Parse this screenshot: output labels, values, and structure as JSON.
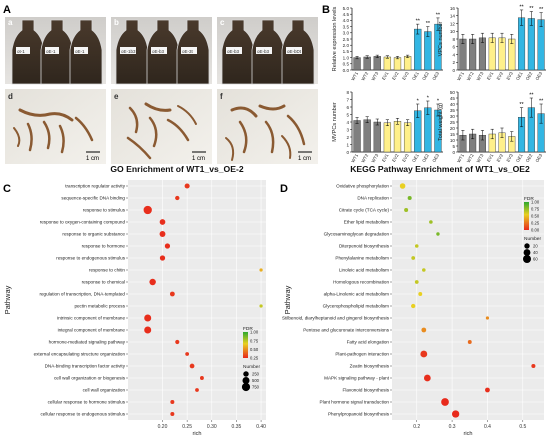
{
  "panel_letters": {
    "A": "A",
    "B": "B",
    "C": "C",
    "D": "D"
  },
  "photos": {
    "a": {
      "letter": "a",
      "labels": [
        "ot-1",
        "oE-1",
        "oE-1"
      ]
    },
    "b": {
      "letter": "b",
      "labels": [
        "oE-1b3",
        "oE-b3",
        "oE-3t"
      ]
    },
    "c": {
      "letter": "c",
      "labels": [
        "oE-b3",
        "oE-b3",
        "oE-bDt"
      ]
    },
    "d": {
      "letter": "d",
      "scale": "1 cm"
    },
    "e": {
      "letter": "e",
      "scale": "1 cm"
    },
    "f": {
      "letter": "f",
      "scale": "1 cm"
    }
  },
  "colors": {
    "wt": "#7f7f7f",
    "ev": "#fff08a",
    "oe": "#32b6e3",
    "star": "#000000"
  },
  "chart_data": [
    {
      "type": "bar",
      "panel": "B1",
      "ylabel": "Relative expression levels",
      "categories": [
        "WT1",
        "WT2",
        "WT3",
        "EV1",
        "EV2",
        "EV3",
        "OE1",
        "OE2",
        "OE3"
      ],
      "values": [
        1.0,
        1.05,
        1.1,
        1.05,
        1.0,
        1.1,
        3.3,
        3.1,
        3.7
      ],
      "errors": [
        0.1,
        0.1,
        0.1,
        0.1,
        0.1,
        0.1,
        0.4,
        0.4,
        0.5
      ],
      "significance": [
        "",
        "",
        "",
        "",
        "",
        "",
        "**",
        "**",
        "**"
      ],
      "ylim": [
        0,
        5
      ],
      "yticks": [
        "0.0",
        "0.5",
        "1.0",
        "1.5",
        "2.0",
        "2.5",
        "3.0",
        "3.5",
        "4.0",
        "4.5",
        "5.0"
      ]
    },
    {
      "type": "bar",
      "panel": "B2",
      "ylabel": "VPCs number",
      "categories": [
        "WT1",
        "WT2",
        "WT3",
        "EV1",
        "EV2",
        "EV3",
        "OE1",
        "OE2",
        "OE3"
      ],
      "values": [
        8.0,
        8.0,
        8.3,
        8.3,
        8.3,
        8.0,
        13.5,
        13.3,
        13.0
      ],
      "errors": [
        1.2,
        1.2,
        1.2,
        1.2,
        1.2,
        1.2,
        2.0,
        1.8,
        1.8
      ],
      "significance": [
        "",
        "",
        "",
        "",
        "",
        "",
        "**",
        "**",
        "**"
      ],
      "ylim": [
        0,
        16
      ],
      "yticks": [
        "0",
        "2",
        "4",
        "6",
        "8",
        "10",
        "12",
        "14",
        "16"
      ]
    },
    {
      "type": "bar",
      "panel": "B3",
      "ylabel": "MVPCs number",
      "categories": [
        "WT1",
        "WT2",
        "WT3",
        "EV1",
        "EV2",
        "EV3",
        "OE1",
        "OE2",
        "OE3"
      ],
      "values": [
        4.2,
        4.3,
        4.0,
        3.9,
        4.1,
        3.9,
        5.5,
        5.9,
        5.6
      ],
      "errors": [
        0.4,
        0.4,
        0.4,
        0.4,
        0.4,
        0.4,
        0.9,
        0.9,
        0.8
      ],
      "significance": [
        "",
        "",
        "",
        "",
        "",
        "",
        "*",
        "*",
        "*"
      ],
      "ylim": [
        0,
        8
      ],
      "yticks": [
        "0",
        "1",
        "2",
        "3",
        "4",
        "5",
        "6",
        "7",
        "8"
      ]
    },
    {
      "type": "bar",
      "panel": "B4",
      "ylabel": "Total weight (g)",
      "categories": [
        "WT1",
        "WT2",
        "WT3",
        "EV1",
        "EV2",
        "EV3",
        "OE1",
        "OE2",
        "OE3"
      ],
      "values": [
        14,
        15,
        14,
        15,
        16,
        13,
        29,
        37,
        32
      ],
      "errors": [
        4,
        4,
        4,
        4,
        4,
        4,
        8,
        8,
        8
      ],
      "significance": [
        "",
        "",
        "",
        "",
        "",
        "",
        "**",
        "**",
        "**"
      ],
      "ylim": [
        0,
        50
      ],
      "yticks": [
        "0",
        "5",
        "10",
        "15",
        "20",
        "25",
        "30",
        "35",
        "40",
        "45",
        "50"
      ]
    },
    {
      "type": "scatter",
      "panel": "C",
      "title": "GO Enrichment of WT1_vs_OE-2",
      "xlabel": "rich",
      "ylabel": "Pathway",
      "xlim": [
        0.13,
        0.41
      ],
      "xticks": [
        0.2,
        0.25,
        0.3,
        0.35,
        0.4
      ],
      "xtick_labels": [
        "0.20",
        "0.25",
        "0.30",
        "0.35",
        "0.40"
      ],
      "legend": {
        "fdr_title": "FDR",
        "fdr_ticks": [
          "1.00",
          "0.75",
          "0.50",
          "0.25"
        ],
        "number_title": "Number",
        "number_ticks": [
          "250",
          "500",
          "750"
        ]
      },
      "points": [
        {
          "term": "transcription regulator activity",
          "rich": 0.25,
          "fdr": 0.05,
          "number": 200
        },
        {
          "term": "sequence-specific DNA binding",
          "rich": 0.23,
          "fdr": 0.05,
          "number": 120
        },
        {
          "term": "response to stimulus",
          "rich": 0.17,
          "fdr": 0.02,
          "number": 780
        },
        {
          "term": "response to oxygen-containing compound",
          "rich": 0.2,
          "fdr": 0.02,
          "number": 280
        },
        {
          "term": "response to organic substance",
          "rich": 0.2,
          "fdr": 0.02,
          "number": 310
        },
        {
          "term": "response to hormone",
          "rich": 0.21,
          "fdr": 0.02,
          "number": 220
        },
        {
          "term": "response to endogenous stimulus",
          "rich": 0.2,
          "fdr": 0.02,
          "number": 230
        },
        {
          "term": "response to chitin",
          "rich": 0.4,
          "fdr": 0.4,
          "number": 40
        },
        {
          "term": "response to chemical",
          "rich": 0.18,
          "fdr": 0.02,
          "number": 400
        },
        {
          "term": "regulation of transcription, DNA-templated",
          "rich": 0.22,
          "fdr": 0.05,
          "number": 170
        },
        {
          "term": "pectin metabolic process",
          "rich": 0.4,
          "fdr": 0.6,
          "number": 40
        },
        {
          "term": "intrinsic component of membrane",
          "rich": 0.17,
          "fdr": 0.02,
          "number": 500
        },
        {
          "term": "integral component of membrane",
          "rich": 0.17,
          "fdr": 0.02,
          "number": 500
        },
        {
          "term": "hormone-mediated signaling pathway",
          "rich": 0.23,
          "fdr": 0.05,
          "number": 100
        },
        {
          "term": "external encapsulating structure organization",
          "rich": 0.25,
          "fdr": 0.05,
          "number": 70
        },
        {
          "term": "DNA-binding transcription factor activity",
          "rich": 0.26,
          "fdr": 0.05,
          "number": 160
        },
        {
          "term": "cell wall organization or biogenesis",
          "rich": 0.28,
          "fdr": 0.05,
          "number": 80
        },
        {
          "term": "cell wall organization",
          "rich": 0.27,
          "fdr": 0.05,
          "number": 70
        },
        {
          "term": "cellular response to hormone stimulus",
          "rich": 0.22,
          "fdr": 0.05,
          "number": 90
        },
        {
          "term": "cellular response to endogenous stimulus",
          "rich": 0.22,
          "fdr": 0.05,
          "number": 90
        }
      ]
    },
    {
      "type": "scatter",
      "panel": "D",
      "title": "KEGG Pathway Enrichment of WT1_vs_OE2",
      "xlabel": "rich",
      "ylabel": "Pathway",
      "xlim": [
        0.13,
        0.56
      ],
      "xticks": [
        0.2,
        0.3,
        0.4,
        0.5
      ],
      "xtick_labels": [
        "0.2",
        "0.3",
        "0.4",
        "0.5"
      ],
      "legend": {
        "fdr_title": "FDR",
        "fdr_ticks": [
          "1.00",
          "0.75",
          "0.50",
          "0.25",
          "0.00"
        ],
        "number_title": "Number",
        "number_ticks": [
          "20",
          "40",
          "60"
        ]
      },
      "points": [
        {
          "term": "Oxidative phosphorylation",
          "rich": 0.16,
          "fdr": 0.5,
          "number": 22
        },
        {
          "term": "DNA replication",
          "rich": 0.18,
          "fdr": 0.8,
          "number": 8
        },
        {
          "term": "Citrate cycle (TCA cycle)",
          "rich": 0.17,
          "fdr": 0.7,
          "number": 8
        },
        {
          "term": "Ether lipid metabolism",
          "rich": 0.24,
          "fdr": 0.7,
          "number": 5
        },
        {
          "term": "Glycosaminoglycan degradation",
          "rich": 0.26,
          "fdr": 0.8,
          "number": 4
        },
        {
          "term": "Diterpenoid biosynthesis",
          "rich": 0.2,
          "fdr": 0.6,
          "number": 5
        },
        {
          "term": "Phenylalanine metabolism",
          "rich": 0.19,
          "fdr": 0.6,
          "number": 6
        },
        {
          "term": "Linoleic acid metabolism",
          "rich": 0.22,
          "fdr": 0.6,
          "number": 5
        },
        {
          "term": "Homologous recombination",
          "rich": 0.2,
          "fdr": 0.6,
          "number": 6
        },
        {
          "term": "alpha-Linolenic acid metabolism",
          "rich": 0.21,
          "fdr": 0.5,
          "number": 7
        },
        {
          "term": "Glycerophospholipid metabolism",
          "rich": 0.19,
          "fdr": 0.5,
          "number": 10
        },
        {
          "term": "Stilbenoid, diarylheptanoid and gingerol biosynthesis",
          "rich": 0.4,
          "fdr": 0.3,
          "number": 3
        },
        {
          "term": "Pentose and glucuronate interconversions",
          "rich": 0.22,
          "fdr": 0.3,
          "number": 14
        },
        {
          "term": "Fatty acid elongation",
          "rich": 0.35,
          "fdr": 0.2,
          "number": 7
        },
        {
          "term": "Plant-pathogen interaction",
          "rich": 0.22,
          "fdr": 0.05,
          "number": 40
        },
        {
          "term": "Zeatin biosynthesis",
          "rich": 0.53,
          "fdr": 0.05,
          "number": 8
        },
        {
          "term": "MAPK signaling pathway - plant",
          "rich": 0.23,
          "fdr": 0.02,
          "number": 38
        },
        {
          "term": "Flavonoid biosynthesis",
          "rich": 0.4,
          "fdr": 0.02,
          "number": 14
        },
        {
          "term": "Plant hormone signal transduction",
          "rich": 0.28,
          "fdr": 0.01,
          "number": 55
        },
        {
          "term": "Phenylpropanoid biosynthesis",
          "rich": 0.31,
          "fdr": 0.01,
          "number": 48
        }
      ]
    }
  ]
}
